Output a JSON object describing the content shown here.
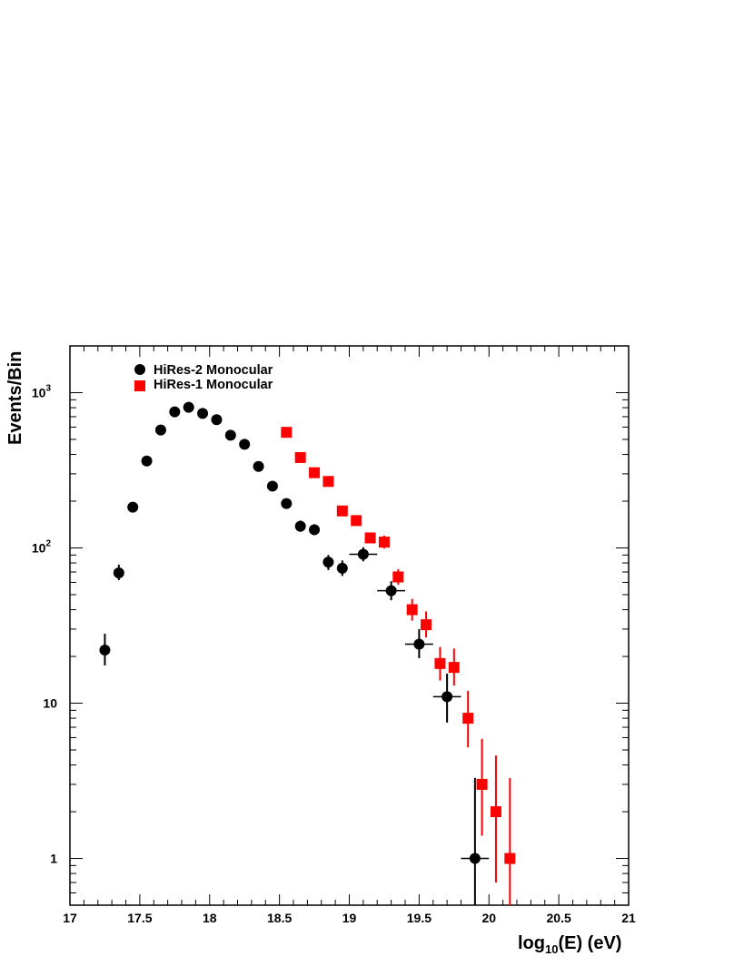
{
  "chart_data": {
    "type": "scatter",
    "title": "",
    "xlabel": {
      "base": "log",
      "sub": "10",
      "rest": "(E) (eV)"
    },
    "ylabel": "Events/Bin",
    "xlim": [
      17,
      21
    ],
    "ylim": [
      0.5,
      2000
    ],
    "ylog": true,
    "grid": false,
    "legend_placement": "top-left",
    "x_ticks": [
      {
        "v": 17,
        "label": "17"
      },
      {
        "v": 17.5,
        "label": "17.5"
      },
      {
        "v": 18,
        "label": "18"
      },
      {
        "v": 18.5,
        "label": "18.5"
      },
      {
        "v": 19,
        "label": "19"
      },
      {
        "v": 19.5,
        "label": "19.5"
      },
      {
        "v": 20,
        "label": "20"
      },
      {
        "v": 20.5,
        "label": "20.5"
      },
      {
        "v": 21,
        "label": "21"
      }
    ],
    "y_ticks": [
      {
        "v": 1,
        "base": "1",
        "exp": ""
      },
      {
        "v": 10,
        "base": "10",
        "exp": ""
      },
      {
        "v": 100,
        "base": "10",
        "exp": "2"
      },
      {
        "v": 1000,
        "base": "10",
        "exp": "3"
      }
    ],
    "series": [
      {
        "name": "HiRes-2 Monocular",
        "marker": "circle",
        "color": "#000000",
        "points": [
          {
            "x": 17.25,
            "y": 22,
            "ylo": 17.5,
            "yhi": 28
          },
          {
            "x": 17.35,
            "y": 69,
            "ylo": 62,
            "yhi": 78
          },
          {
            "x": 17.45,
            "y": 183
          },
          {
            "x": 17.55,
            "y": 363
          },
          {
            "x": 17.65,
            "y": 575
          },
          {
            "x": 17.75,
            "y": 752
          },
          {
            "x": 17.85,
            "y": 805
          },
          {
            "x": 17.95,
            "y": 735
          },
          {
            "x": 18.05,
            "y": 670
          },
          {
            "x": 18.15,
            "y": 532
          },
          {
            "x": 18.25,
            "y": 465
          },
          {
            "x": 18.35,
            "y": 335
          },
          {
            "x": 18.45,
            "y": 250
          },
          {
            "x": 18.55,
            "y": 193
          },
          {
            "x": 18.65,
            "y": 138,
            "ylo": 127,
            "yhi": 150
          },
          {
            "x": 18.75,
            "y": 131,
            "ylo": 121,
            "yhi": 142
          },
          {
            "x": 18.85,
            "y": 81,
            "ylo": 72,
            "yhi": 90
          },
          {
            "x": 18.95,
            "y": 74,
            "ylo": 66,
            "yhi": 83
          },
          {
            "x": 19.1,
            "y": 91,
            "ylo": 82,
            "yhi": 101,
            "xerr": 0.1
          },
          {
            "x": 19.3,
            "y": 53,
            "ylo": 46,
            "yhi": 61,
            "xerr": 0.1
          },
          {
            "x": 19.5,
            "y": 24,
            "ylo": 19.5,
            "yhi": 30,
            "xerr": 0.1
          },
          {
            "x": 19.7,
            "y": 11,
            "ylo": 7.5,
            "yhi": 15.5,
            "xerr": 0.1
          },
          {
            "x": 19.9,
            "y": 1,
            "ylo": 0.5,
            "yhi": 3.3,
            "xerr": 0.1
          }
        ]
      },
      {
        "name": "HiRes-1 Monocular",
        "marker": "square",
        "color": "#ff0000",
        "points": [
          {
            "x": 18.55,
            "y": 555
          },
          {
            "x": 18.65,
            "y": 382
          },
          {
            "x": 18.75,
            "y": 305
          },
          {
            "x": 18.85,
            "y": 268
          },
          {
            "x": 18.95,
            "y": 173
          },
          {
            "x": 19.05,
            "y": 150
          },
          {
            "x": 19.15,
            "y": 116,
            "ylo": 107,
            "yhi": 125
          },
          {
            "x": 19.25,
            "y": 109,
            "ylo": 99,
            "yhi": 120
          },
          {
            "x": 19.35,
            "y": 65,
            "ylo": 58,
            "yhi": 73
          },
          {
            "x": 19.45,
            "y": 40,
            "ylo": 34,
            "yhi": 47
          },
          {
            "x": 19.55,
            "y": 32,
            "ylo": 26.5,
            "yhi": 39
          },
          {
            "x": 19.65,
            "y": 18,
            "ylo": 14,
            "yhi": 23
          },
          {
            "x": 19.75,
            "y": 17,
            "ylo": 13,
            "yhi": 22.5
          },
          {
            "x": 19.85,
            "y": 8,
            "ylo": 5.2,
            "yhi": 12
          },
          {
            "x": 19.95,
            "y": 3,
            "ylo": 1.4,
            "yhi": 5.9
          },
          {
            "x": 20.05,
            "y": 2,
            "ylo": 0.7,
            "yhi": 4.6
          },
          {
            "x": 20.15,
            "y": 1,
            "ylo": 0.5,
            "yhi": 3.3
          }
        ]
      }
    ]
  }
}
